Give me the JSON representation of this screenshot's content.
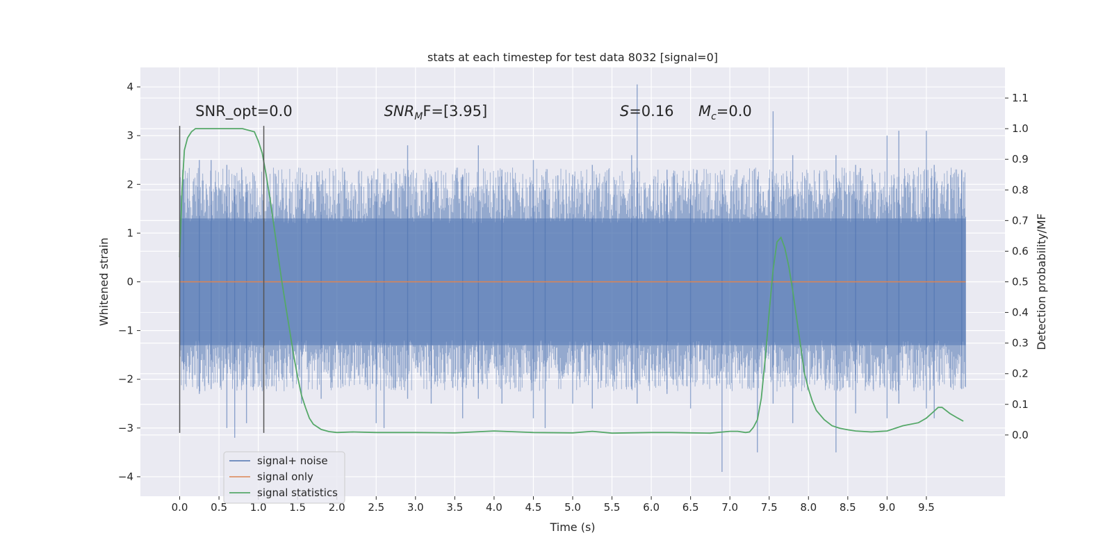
{
  "chart_data": {
    "type": "line",
    "title": "stats at each timestep for test data 8032 [signal=0]",
    "xlabel": "Time (s)",
    "ylabel": "Whitened strain",
    "y2label": "Detection probability/MF",
    "xlim": [
      -0.5,
      10.5
    ],
    "ylim": [
      -4.4,
      4.4
    ],
    "y2lim": [
      -0.2,
      1.2
    ],
    "x_ticks": [
      0.0,
      0.5,
      1.0,
      1.5,
      2.0,
      2.5,
      3.0,
      3.5,
      4.0,
      4.5,
      5.0,
      5.5,
      6.0,
      6.5,
      7.0,
      7.5,
      8.0,
      8.5,
      9.0,
      9.5
    ],
    "x_tick_labels": [
      "0.0",
      "0.5",
      "1.0",
      "1.5",
      "2.0",
      "2.5",
      "3.0",
      "3.5",
      "4.0",
      "4.5",
      "5.0",
      "5.5",
      "6.0",
      "6.5",
      "7.0",
      "7.5",
      "8.0",
      "8.5",
      "9.0",
      "9.5"
    ],
    "y_ticks": [
      -4,
      -3,
      -2,
      -1,
      0,
      1,
      2,
      3,
      4
    ],
    "y_tick_labels": [
      "−4",
      "−3",
      "−2",
      "−1",
      "0",
      "1",
      "2",
      "3",
      "4"
    ],
    "y2_ticks": [
      0.0,
      0.1,
      0.2,
      0.3,
      0.4,
      0.5,
      0.6,
      0.7,
      0.8,
      0.9,
      1.0,
      1.1
    ],
    "y2_tick_labels": [
      "0.0",
      "0.1",
      "0.2",
      "0.3",
      "0.4",
      "0.5",
      "0.6",
      "0.7",
      "0.8",
      "0.9",
      "1.0",
      "1.1"
    ],
    "grid": true,
    "legend_position": "lower-left",
    "vertical_markers": {
      "x": [
        0.0,
        1.07
      ],
      "y_range": [
        -3.1,
        3.2
      ]
    },
    "annotations": {
      "snr_opt": "SNR_opt=0.0",
      "snr_mf_base": "SNR",
      "snr_mf_sub": "M",
      "snr_mf_rest": "F=[3.95]",
      "s_var": "S",
      "s_rest": "=0.16",
      "mc_base": "M",
      "mc_sub": "c",
      "mc_rest": "=0.0"
    },
    "annotation_positions": {
      "snr_opt": [
        0.2,
        3.3
      ],
      "snr_mf": [
        2.6,
        3.3
      ],
      "s": [
        5.6,
        3.3
      ],
      "mc": [
        6.6,
        3.3
      ]
    },
    "series": [
      {
        "name": "signal+ noise",
        "color": "#4c72b0",
        "kind": "noise",
        "x_range": [
          0.0,
          10.0
        ],
        "spikes": [
          [
            0.05,
            2.1,
            -1.8
          ],
          [
            0.25,
            2.5,
            -2.3
          ],
          [
            0.4,
            2.5,
            -2.2
          ],
          [
            0.6,
            2.4,
            -3.0
          ],
          [
            0.7,
            1.9,
            -3.2
          ],
          [
            0.85,
            2.0,
            -2.9
          ],
          [
            1.55,
            1.9,
            -2.5
          ],
          [
            1.8,
            2.0,
            -2.4
          ],
          [
            2.5,
            2.1,
            -2.9
          ],
          [
            2.6,
            2.2,
            -3.0
          ],
          [
            2.9,
            2.8,
            -2.4
          ],
          [
            3.2,
            2.1,
            -2.5
          ],
          [
            3.6,
            2.2,
            -2.8
          ],
          [
            3.8,
            2.8,
            -2.4
          ],
          [
            4.1,
            2.3,
            -2.5
          ],
          [
            4.5,
            2.5,
            -2.8
          ],
          [
            4.65,
            1.9,
            -3.0
          ],
          [
            5.0,
            2.2,
            -2.5
          ],
          [
            5.25,
            2.4,
            -2.6
          ],
          [
            5.75,
            2.6,
            -2.2
          ],
          [
            5.82,
            4.05,
            -2.5
          ],
          [
            6.2,
            2.3,
            -2.3
          ],
          [
            6.5,
            2.0,
            -2.6
          ],
          [
            6.9,
            2.2,
            -3.9
          ],
          [
            7.35,
            2.1,
            -3.5
          ],
          [
            7.55,
            3.5,
            -2.5
          ],
          [
            7.8,
            2.6,
            -2.9
          ],
          [
            8.35,
            2.6,
            -3.5
          ],
          [
            8.6,
            2.4,
            -2.7
          ],
          [
            9.0,
            3.0,
            -2.8
          ],
          [
            9.15,
            3.1,
            -2.5
          ],
          [
            9.5,
            3.1,
            -2.6
          ],
          [
            9.6,
            2.4,
            -2.8
          ],
          [
            9.95,
            2.3,
            -2.2
          ]
        ]
      },
      {
        "name": "signal only",
        "color": "#dd8452",
        "x": [
          0.0,
          10.0
        ],
        "y": [
          0.0,
          0.0
        ]
      },
      {
        "name": "signal statistics",
        "color": "#55a868",
        "axis": "right",
        "x": [
          0.0,
          0.03,
          0.06,
          0.1,
          0.15,
          0.2,
          0.3,
          0.5,
          0.8,
          0.95,
          1.0,
          1.05,
          1.1,
          1.15,
          1.2,
          1.25,
          1.3,
          1.35,
          1.4,
          1.45,
          1.5,
          1.55,
          1.6,
          1.65,
          1.7,
          1.8,
          1.9,
          2.0,
          2.2,
          2.5,
          3.0,
          3.5,
          4.0,
          4.5,
          5.0,
          5.25,
          5.5,
          6.0,
          6.25,
          6.5,
          6.75,
          7.0,
          7.1,
          7.2,
          7.25,
          7.3,
          7.35,
          7.4,
          7.45,
          7.5,
          7.55,
          7.6,
          7.65,
          7.7,
          7.75,
          7.8,
          7.85,
          7.9,
          7.95,
          8.0,
          8.05,
          8.1,
          8.2,
          8.3,
          8.4,
          8.5,
          8.6,
          8.8,
          9.0,
          9.2,
          9.4,
          9.5,
          9.6,
          9.65,
          9.7,
          9.8,
          9.9,
          9.97
        ],
        "y": [
          0.58,
          0.8,
          0.93,
          0.97,
          0.99,
          1.0,
          1.0,
          1.0,
          1.0,
          0.99,
          0.96,
          0.92,
          0.85,
          0.77,
          0.68,
          0.59,
          0.5,
          0.42,
          0.34,
          0.26,
          0.19,
          0.13,
          0.09,
          0.055,
          0.035,
          0.018,
          0.011,
          0.008,
          0.01,
          0.008,
          0.008,
          0.007,
          0.013,
          0.008,
          0.007,
          0.012,
          0.006,
          0.008,
          0.008,
          0.007,
          0.006,
          0.012,
          0.012,
          0.008,
          0.01,
          0.025,
          0.05,
          0.12,
          0.25,
          0.4,
          0.54,
          0.63,
          0.645,
          0.61,
          0.55,
          0.47,
          0.38,
          0.29,
          0.2,
          0.15,
          0.11,
          0.08,
          0.05,
          0.03,
          0.022,
          0.017,
          0.013,
          0.01,
          0.013,
          0.03,
          0.04,
          0.055,
          0.078,
          0.09,
          0.09,
          0.07,
          0.055,
          0.045
        ]
      }
    ]
  }
}
